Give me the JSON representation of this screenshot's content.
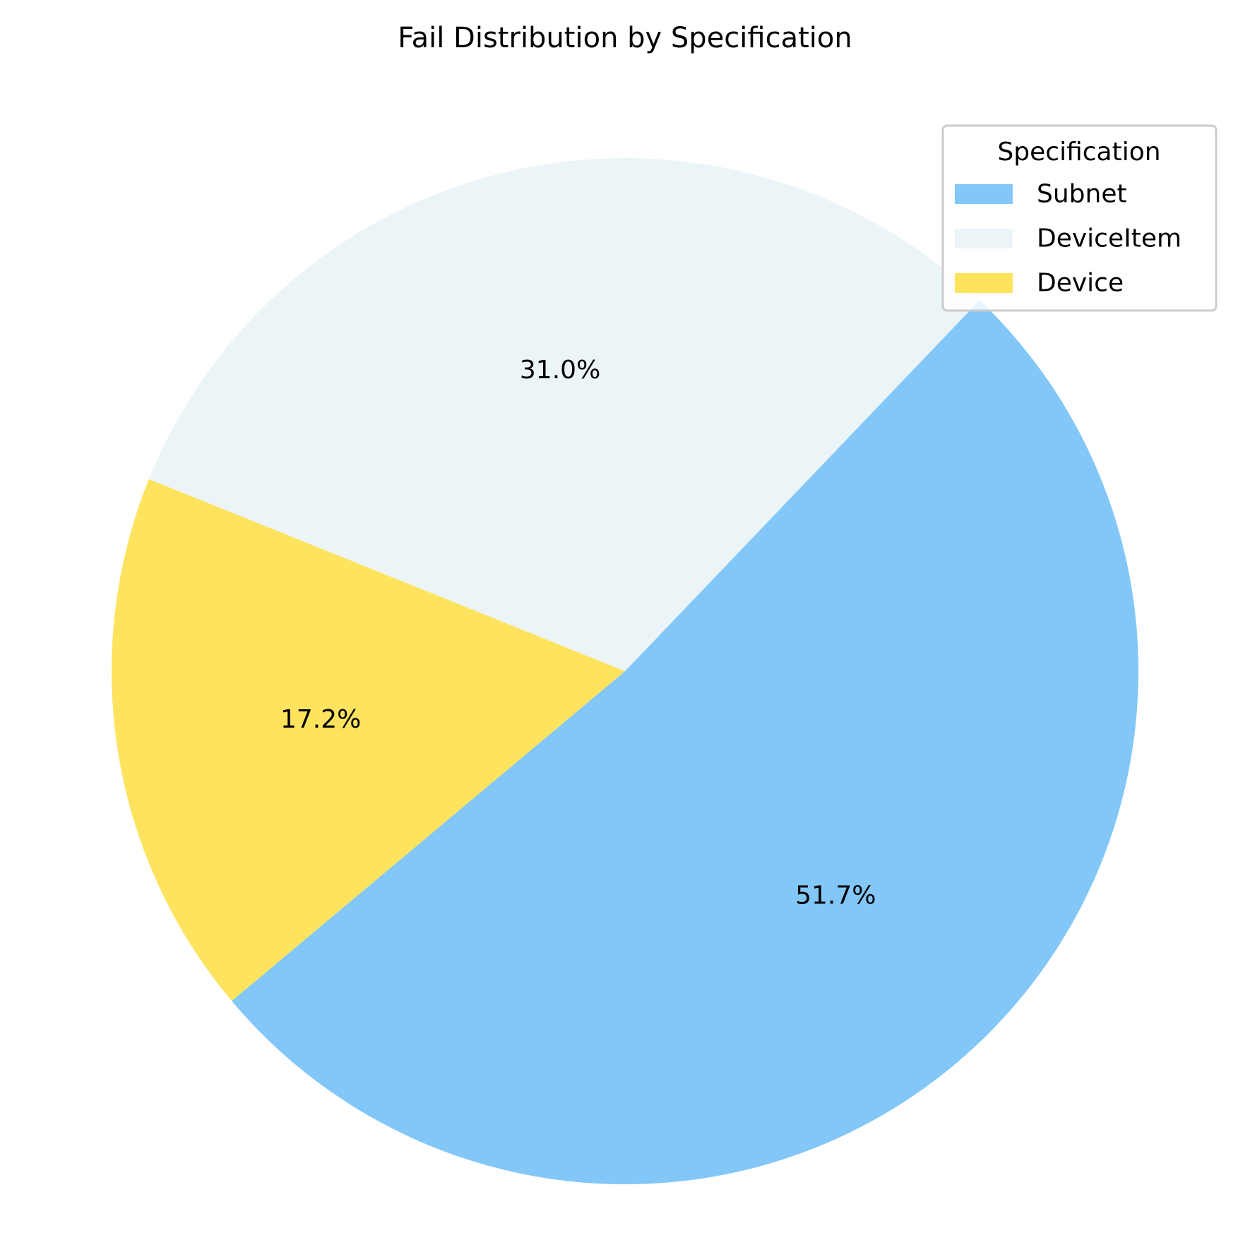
{
  "chart_data": {
    "type": "pie",
    "title": "Fail Distribution by Specification",
    "legend": {
      "title": "Specification",
      "placement": "top-right"
    },
    "slices": [
      {
        "label": "Subnet",
        "value": 51.7,
        "display": "51.7%",
        "color": "#82C7F7"
      },
      {
        "label": "DeviceItem",
        "value": 31.0,
        "display": "31.0%",
        "color": "#EBF5F8"
      },
      {
        "label": "Device",
        "value": 17.2,
        "display": "17.2%",
        "color": "#FDE35E"
      }
    ]
  }
}
